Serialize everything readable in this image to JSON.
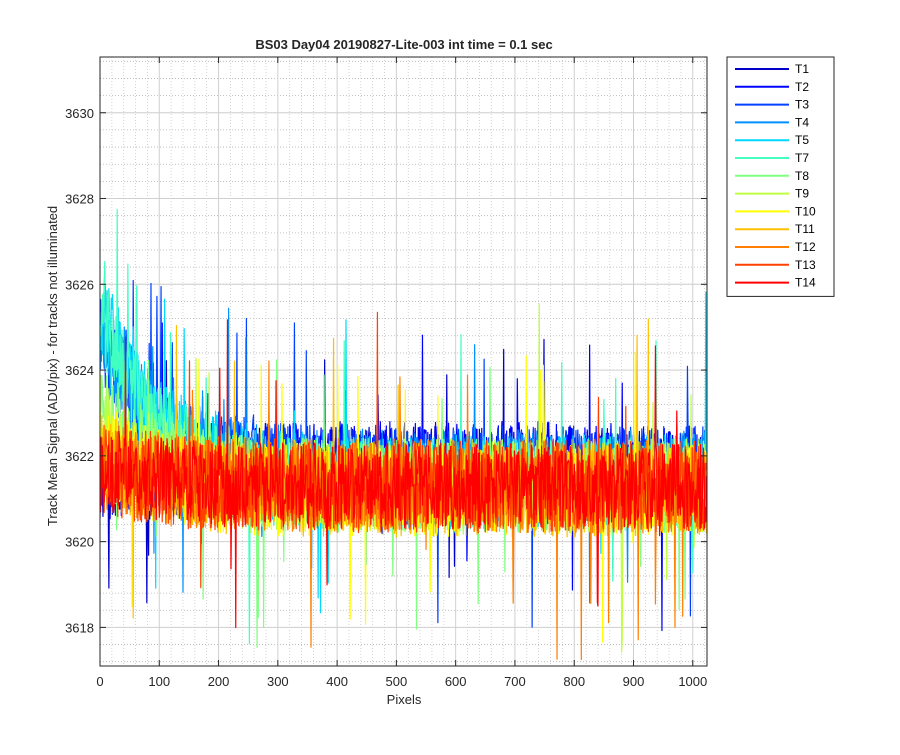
{
  "chart_data": {
    "type": "line",
    "title": "BS03 Day04 20190827-Lite-003 int time = 0.1 sec",
    "xlabel": "Pixels",
    "ylabel": "Track Mean Signal (ADU/pix) - for tracks not illuminated",
    "xlim": [
      0,
      1024
    ],
    "ylim": [
      3617.1,
      3631.3
    ],
    "xticks": [
      0,
      100,
      200,
      300,
      400,
      500,
      600,
      700,
      800,
      900,
      1000
    ],
    "yticks": [
      3618,
      3620,
      3622,
      3624,
      3626,
      3628,
      3630
    ],
    "grid": true,
    "minor_grid": true,
    "legend_position": "outside-top-right",
    "series": [
      {
        "name": "T1",
        "color": "#0000c8",
        "base": 3621.6,
        "hump": 0.0,
        "amplitude": 1.1,
        "spike_rate": 0.01,
        "x_sampled": [
          0,
          256,
          512,
          768,
          1023
        ],
        "y_sampled": [
          3621.7,
          3621.5,
          3621.6,
          3621.6,
          3621.6
        ]
      },
      {
        "name": "T2",
        "color": "#0000ff",
        "base": 3621.7,
        "hump": 0.0,
        "amplitude": 1.1,
        "spike_rate": 0.01,
        "x_sampled": [
          0,
          256,
          512,
          768,
          1023
        ],
        "y_sampled": [
          3621.8,
          3621.6,
          3621.7,
          3621.7,
          3621.7
        ]
      },
      {
        "name": "T3",
        "color": "#0040ff",
        "base": 3621.6,
        "hump": 3.2,
        "amplitude": 1.1,
        "spike_rate": 0.01,
        "x_sampled": [
          0,
          256,
          512,
          768,
          1023
        ],
        "y_sampled": [
          3625.0,
          3622.0,
          3621.6,
          3621.6,
          3621.6
        ]
      },
      {
        "name": "T4",
        "color": "#0090ff",
        "base": 3621.5,
        "hump": 3.6,
        "amplitude": 1.1,
        "spike_rate": 0.01,
        "x_sampled": [
          0,
          256,
          512,
          768,
          1023
        ],
        "y_sampled": [
          3625.3,
          3621.9,
          3621.5,
          3621.5,
          3621.8
        ]
      },
      {
        "name": "T5",
        "color": "#00d8ff",
        "base": 3621.4,
        "hump": 4.2,
        "amplitude": 1.1,
        "spike_rate": 0.01,
        "x_sampled": [
          0,
          256,
          512,
          768,
          1023
        ],
        "y_sampled": [
          3625.8,
          3621.9,
          3621.4,
          3621.4,
          3621.9
        ]
      },
      {
        "name": "T7",
        "color": "#40ffc0",
        "base": 3621.3,
        "hump": 4.0,
        "amplitude": 1.1,
        "spike_rate": 0.01,
        "x_sampled": [
          0,
          256,
          512,
          768,
          1023
        ],
        "y_sampled": [
          3625.5,
          3621.7,
          3621.3,
          3621.3,
          3621.3
        ]
      },
      {
        "name": "T8",
        "color": "#80ff80",
        "base": 3621.3,
        "hump": 2.0,
        "amplitude": 1.1,
        "spike_rate": 0.01,
        "x_sampled": [
          0,
          256,
          512,
          768,
          1023
        ],
        "y_sampled": [
          3623.5,
          3621.5,
          3621.3,
          3621.3,
          3621.3
        ]
      },
      {
        "name": "T9",
        "color": "#c0ff40",
        "base": 3621.3,
        "hump": 1.5,
        "amplitude": 1.1,
        "spike_rate": 0.01,
        "x_sampled": [
          0,
          256,
          512,
          768,
          1023
        ],
        "y_sampled": [
          3622.9,
          3621.4,
          3621.3,
          3621.3,
          3621.3
        ]
      },
      {
        "name": "T10",
        "color": "#ffff00",
        "base": 3621.2,
        "hump": 1.0,
        "amplitude": 1.1,
        "spike_rate": 0.01,
        "x_sampled": [
          0,
          256,
          512,
          768,
          1023
        ],
        "y_sampled": [
          3622.3,
          3621.3,
          3621.2,
          3621.2,
          3621.2
        ]
      },
      {
        "name": "T11",
        "color": "#ffc000",
        "base": 3621.2,
        "hump": 0.8,
        "amplitude": 1.1,
        "spike_rate": 0.01,
        "x_sampled": [
          0,
          256,
          512,
          768,
          1023
        ],
        "y_sampled": [
          3622.1,
          3621.3,
          3621.2,
          3621.2,
          3621.2
        ]
      },
      {
        "name": "T12",
        "color": "#ff8000",
        "base": 3621.3,
        "hump": 0.6,
        "amplitude": 1.1,
        "spike_rate": 0.01,
        "x_sampled": [
          0,
          256,
          512,
          768,
          1023
        ],
        "y_sampled": [
          3622.0,
          3621.4,
          3621.3,
          3621.3,
          3621.3
        ]
      },
      {
        "name": "T13",
        "color": "#ff4000",
        "base": 3621.3,
        "hump": 0.5,
        "amplitude": 1.1,
        "spike_rate": 0.01,
        "x_sampled": [
          0,
          256,
          512,
          768,
          1023
        ],
        "y_sampled": [
          3621.9,
          3621.4,
          3621.3,
          3621.3,
          3621.3
        ]
      },
      {
        "name": "T14",
        "color": "#ff0000",
        "base": 3621.3,
        "hump": 0.4,
        "amplitude": 1.0,
        "spike_rate": 0.01,
        "x_sampled": [
          0,
          256,
          512,
          768,
          1023
        ],
        "y_sampled": [
          3621.8,
          3621.4,
          3621.3,
          3621.3,
          3621.3
        ]
      }
    ]
  }
}
